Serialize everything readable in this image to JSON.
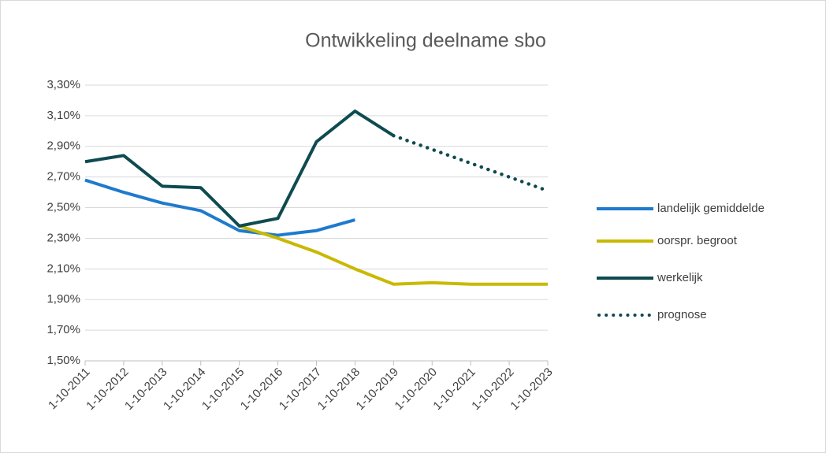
{
  "chart_data": {
    "type": "line",
    "title": "Ontwikkeling  deelname sbo",
    "categories": [
      "1-10-2011",
      "1-10-2012",
      "1-10-2013",
      "1-10-2014",
      "1-10-2015",
      "1-10-2016",
      "1-10-2017",
      "1-10-2018",
      "1-10-2019",
      "1-10-2020",
      "1-10-2021",
      "1-10-2022",
      "1-10-2023"
    ],
    "series": [
      {
        "name": "landelijk gemiddelde",
        "color": "#1f7acc",
        "values": [
          2.68,
          2.6,
          2.53,
          2.48,
          2.35,
          2.32,
          2.35,
          2.42,
          null,
          null,
          null,
          null,
          null
        ]
      },
      {
        "name": "oorspr. begroot",
        "color": "#c8b900",
        "values": [
          null,
          null,
          null,
          null,
          2.38,
          2.3,
          2.21,
          2.1,
          2.0,
          2.01,
          2.0,
          2.0,
          2.0
        ]
      },
      {
        "name": "werkelijk",
        "color": "#0e4b50",
        "values": [
          2.8,
          2.84,
          2.64,
          2.63,
          2.38,
          2.43,
          2.93,
          3.13,
          2.97,
          null,
          null,
          null,
          null
        ]
      },
      {
        "name": "prognose",
        "color": "#0e4b50",
        "style": "dotted",
        "values": [
          null,
          null,
          null,
          null,
          null,
          null,
          null,
          null,
          2.97,
          2.88,
          2.79,
          2.7,
          2.61
        ]
      }
    ],
    "ylim": [
      1.5,
      3.3
    ],
    "yticks": [
      {
        "value": 1.5,
        "label": "1,50%"
      },
      {
        "value": 1.7,
        "label": "1,70%"
      },
      {
        "value": 1.9,
        "label": "1,90%"
      },
      {
        "value": 2.1,
        "label": "2,10%"
      },
      {
        "value": 2.3,
        "label": "2,30%"
      },
      {
        "value": 2.5,
        "label": "2,50%"
      },
      {
        "value": 2.7,
        "label": "2,70%"
      },
      {
        "value": 2.9,
        "label": "2,90%"
      },
      {
        "value": 3.1,
        "label": "3,10%"
      },
      {
        "value": 3.3,
        "label": "3,30%"
      }
    ],
    "grid": true,
    "legend": "right"
  }
}
